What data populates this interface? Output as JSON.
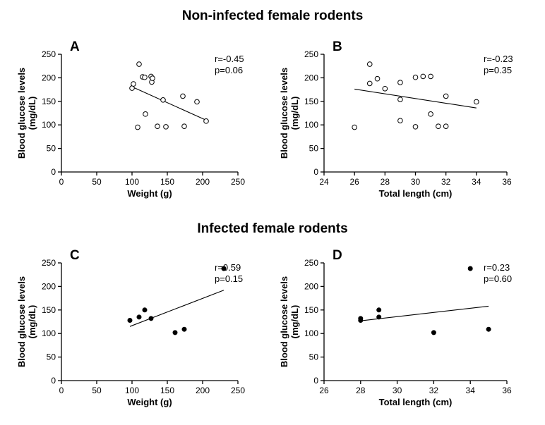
{
  "sections": {
    "top_title": "Non-infected female rodents",
    "bottom_title": "Infected female rodents"
  },
  "colors": {
    "axis": "#000000",
    "marker_open": "#ffffff",
    "marker_filled": "#000000",
    "background": "#ffffff"
  },
  "chart_data": [
    {
      "panel": "A",
      "type": "scatter",
      "group": "Non-infected female rodents",
      "xlabel": "Weight (g)",
      "ylabel": "Blood glucose levels (mg/dL)",
      "ylabel_lines": [
        "Blood glucose levels",
        "(mg/dL)"
      ],
      "xlim": [
        0,
        250
      ],
      "ylim": [
        0,
        250
      ],
      "xticks": [
        0,
        50,
        100,
        150,
        200,
        250
      ],
      "yticks": [
        0,
        50,
        100,
        150,
        200,
        250
      ],
      "marker": "open",
      "points": [
        [
          100,
          178
        ],
        [
          102,
          187
        ],
        [
          108,
          95
        ],
        [
          110,
          229
        ],
        [
          115,
          202
        ],
        [
          118,
          201
        ],
        [
          119,
          123
        ],
        [
          127,
          203
        ],
        [
          128,
          191
        ],
        [
          129,
          199
        ],
        [
          136,
          97
        ],
        [
          144,
          153
        ],
        [
          148,
          96
        ],
        [
          172,
          161
        ],
        [
          174,
          97
        ],
        [
          192,
          149
        ],
        [
          205,
          108
        ]
      ],
      "fit": {
        "x": [
          100,
          205
        ],
        "y": [
          181,
          110
        ]
      },
      "r": "r=-0.45",
      "p": "p=0.06"
    },
    {
      "panel": "B",
      "type": "scatter",
      "group": "Non-infected female rodents",
      "xlabel": "Total length (cm)",
      "ylabel": "Blood glucose levels (mg/dL)",
      "ylabel_lines": [
        "Blood glucose levels",
        "(mg/dL)"
      ],
      "xlim": [
        24,
        36
      ],
      "ylim": [
        0,
        250
      ],
      "xticks": [
        24,
        26,
        28,
        30,
        32,
        34,
        36
      ],
      "yticks": [
        0,
        50,
        100,
        150,
        200,
        250
      ],
      "marker": "open",
      "points": [
        [
          26,
          95
        ],
        [
          27,
          188
        ],
        [
          27,
          229
        ],
        [
          27.5,
          198
        ],
        [
          28,
          177
        ],
        [
          29,
          190
        ],
        [
          29,
          154
        ],
        [
          29,
          109
        ],
        [
          30,
          201
        ],
        [
          30,
          96
        ],
        [
          30.5,
          203
        ],
        [
          31,
          203
        ],
        [
          31,
          123
        ],
        [
          31.5,
          97
        ],
        [
          32,
          161
        ],
        [
          32,
          97
        ],
        [
          34,
          149
        ]
      ],
      "fit": {
        "x": [
          26,
          34
        ],
        "y": [
          176,
          136
        ]
      },
      "r": "r=-0.23",
      "p": "p=0.35"
    },
    {
      "panel": "C",
      "type": "scatter",
      "group": "Infected female rodents",
      "xlabel": "Weight (g)",
      "ylabel": "Blood glucose levels (mg/dL)",
      "ylabel_lines": [
        "Blood glucose levels",
        "(mg/dL)"
      ],
      "xlim": [
        0,
        250
      ],
      "ylim": [
        0,
        250
      ],
      "xticks": [
        0,
        50,
        100,
        150,
        200,
        250
      ],
      "yticks": [
        0,
        50,
        100,
        150,
        200,
        250
      ],
      "marker": "filled",
      "points": [
        [
          97,
          128
        ],
        [
          110,
          135
        ],
        [
          118,
          150
        ],
        [
          127,
          132
        ],
        [
          161,
          102
        ],
        [
          174,
          109
        ],
        [
          230,
          238
        ]
      ],
      "fit": {
        "x": [
          97,
          230
        ],
        "y": [
          115,
          192
        ]
      },
      "r": "r=0.59",
      "p": "p=0.15"
    },
    {
      "panel": "D",
      "type": "scatter",
      "group": "Infected female rodents",
      "xlabel": "Total length (cm)",
      "ylabel": "Blood glucose levels (mg/dL)",
      "ylabel_lines": [
        "Blood glucose levels",
        "(mg/dL)"
      ],
      "xlim": [
        26,
        36
      ],
      "ylim": [
        0,
        250
      ],
      "xticks": [
        26,
        28,
        30,
        32,
        34,
        36
      ],
      "yticks": [
        0,
        50,
        100,
        150,
        200,
        250
      ],
      "marker": "filled",
      "points": [
        [
          28,
          128
        ],
        [
          28,
          132
        ],
        [
          29,
          150
        ],
        [
          29,
          135
        ],
        [
          32,
          102
        ],
        [
          34,
          238
        ],
        [
          35,
          109
        ]
      ],
      "fit": {
        "x": [
          28,
          35
        ],
        "y": [
          127,
          158
        ]
      },
      "r": "r=0.23",
      "p": "p=0.60"
    }
  ]
}
